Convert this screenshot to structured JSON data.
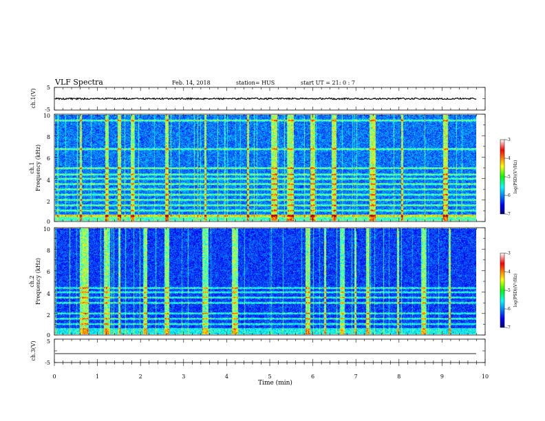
{
  "header": {
    "title": "VLF Spectra",
    "date": "Feb. 14, 2018",
    "station": "station= HUS",
    "start": "start  UT =   21: 0  : 7"
  },
  "chart_data": [
    {
      "type": "line",
      "name": "ch1-waveform",
      "ylabel": "ch.1(V)",
      "ylim": [
        -5,
        5
      ],
      "yticks": [
        "5",
        "-5"
      ],
      "xlim": [
        0,
        10
      ],
      "baseline": 0,
      "amplitude": 0.35
    },
    {
      "type": "heatmap",
      "name": "ch1-spectrogram",
      "ylabel_top": "ch.1",
      "ylabel": "Frequency (kHz)",
      "ylim": [
        0,
        10
      ],
      "yticks": [
        "0",
        "2",
        "4",
        "6",
        "8",
        "10"
      ],
      "xlim": [
        0,
        9.83
      ],
      "colorbar": {
        "label": "log(PSD)(V²/Hz)",
        "range": [
          -7,
          -3
        ],
        "ticks": [
          "-3",
          "-4",
          "-5",
          "-6",
          "-7"
        ]
      },
      "bands_khz": [
        0.5,
        1.0,
        1.5,
        2.0,
        2.5,
        3.0,
        3.5,
        4.0,
        4.4,
        5.0,
        6.8,
        9.5
      ],
      "bursts_min": [
        0.6,
        1.2,
        1.5,
        1.8,
        2.6,
        3.5,
        4.5,
        5.1,
        5.5,
        6.0,
        6.5,
        7.4,
        8.1,
        9.1
      ]
    },
    {
      "type": "heatmap",
      "name": "ch2-spectrogram",
      "ylabel_top": "ch.2",
      "ylabel": "Frequency (kHz)",
      "ylim": [
        0,
        10
      ],
      "yticks": [
        "0",
        "2",
        "4",
        "6",
        "8",
        "10"
      ],
      "xlim": [
        0,
        9.83
      ],
      "colorbar": {
        "label": "log(PSD)(V²/Hz)",
        "range": [
          -7,
          -3
        ],
        "ticks": [
          "-3",
          "-4",
          "-5",
          "-6",
          "-7"
        ]
      },
      "bands_khz": [
        1.0,
        1.5,
        2.0,
        3.0,
        3.5,
        4.0,
        4.4
      ],
      "bursts_min": [
        0.65,
        0.7,
        1.2,
        1.5,
        2.1,
        2.6,
        3.5,
        4.2,
        5.9,
        6.3,
        6.7,
        7.0,
        7.3,
        8.0,
        8.6,
        9.2
      ]
    },
    {
      "type": "line",
      "name": "ch3-waveform",
      "ylabel": "ch.3(V)",
      "ylim": [
        -5,
        5
      ],
      "yticks": [
        "5",
        "-5"
      ],
      "xlim": [
        0,
        10
      ],
      "baseline": -1.2,
      "amplitude": 0
    }
  ],
  "xaxis": {
    "label": "Time  (min)",
    "ticks": [
      "0",
      "1",
      "2",
      "3",
      "4",
      "5",
      "6",
      "7",
      "8",
      "9",
      "10"
    ],
    "range": [
      0,
      10
    ]
  }
}
